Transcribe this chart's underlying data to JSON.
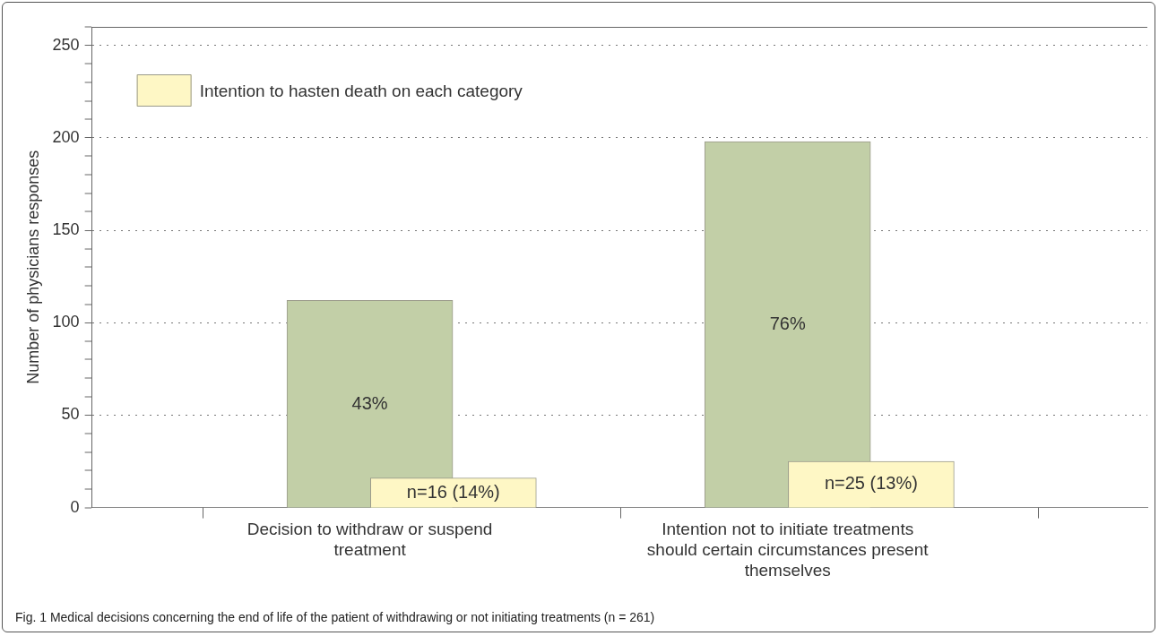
{
  "chart_data": {
    "type": "bar",
    "ylabel": "Number of physicians responses",
    "categories": [
      "Decision to withdraw or suspend treatment",
      "Intention not to initiate treatments should certain circumstances present themselves"
    ],
    "series": [
      {
        "color": "#c2cfa7",
        "values": [
          112,
          198
        ]
      },
      {
        "name": "Intention to hasten death on each category",
        "color": "#fef7c5",
        "values": [
          16,
          25
        ],
        "value_labels": [
          "n=16 (14%)",
          "n=25 (13%)"
        ]
      }
    ],
    "ylim": [
      0,
      260
    ],
    "yticks": [
      0,
      {
        "value": 10,
        "label": null
      },
      {
        "value": 20,
        "label": null
      },
      {
        "value": 30,
        "label": null
      },
      {
        "value": 40,
        "label": null
      },
      50,
      {
        "value": 60,
        "label": null
      },
      {
        "value": 70,
        "label": null
      },
      {
        "value": 80,
        "label": null
      },
      {
        "value": 90,
        "label": null
      },
      100,
      {
        "value": 110,
        "label": null
      },
      {
        "value": 120,
        "label": null
      },
      {
        "value": 130,
        "label": null
      },
      {
        "value": 140,
        "label": null
      },
      150,
      {
        "value": 160,
        "label": null
      },
      {
        "value": 170,
        "label": null
      },
      {
        "value": 180,
        "label": null
      },
      {
        "value": 190,
        "label": null
      },
      200,
      {
        "value": 210,
        "label": null
      },
      {
        "value": 220,
        "label": null
      },
      {
        "value": 230,
        "label": null
      },
      {
        "value": 240,
        "label": null
      },
      250,
      {
        "value": 260,
        "label": null
      }
    ],
    "grid": "y",
    "legend": "top left",
    "annotations": [
      "43%",
      "76%",
      "Fig. 1 Medical decisions concerning the end of life of the patient of withdrawing or not initiating treatments (n = 261)"
    ]
  }
}
